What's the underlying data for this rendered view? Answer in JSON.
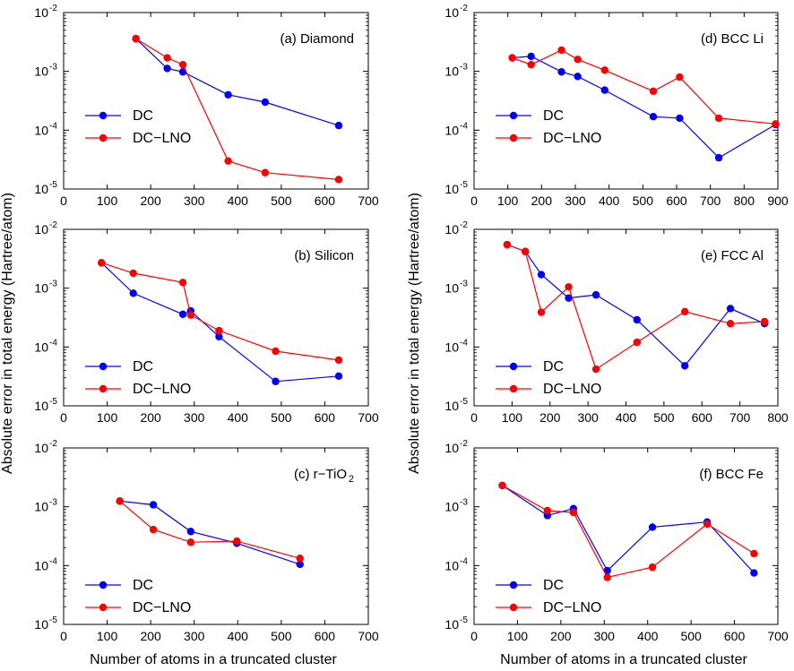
{
  "figure": {
    "ylabel": "Absolute error in total energy (Hartree/atom)",
    "xlabel": "Number of atoms in a truncated cluster"
  },
  "colors": {
    "DC": "#0000ff",
    "DC-LNO": "#ff0000"
  },
  "chart_data": [
    {
      "type": "line",
      "title": "(a) Diamond",
      "xlim": [
        0,
        700
      ],
      "xticks": [
        0,
        100,
        200,
        300,
        400,
        500,
        600,
        700
      ],
      "ylim": [
        1e-05,
        0.01
      ],
      "yscale": "log",
      "ytick_labels": [
        {
          "base": "10",
          "exp": "-5"
        },
        {
          "base": "10",
          "exp": "-4"
        },
        {
          "base": "10",
          "exp": "-3"
        },
        {
          "base": "10",
          "exp": "-2"
        }
      ],
      "legend": "center-left",
      "series": [
        {
          "name": "DC",
          "color": "#0000ff",
          "x": [
            166,
            238,
            274,
            378,
            463,
            632
          ],
          "y": [
            0.0036,
            0.00112,
            0.00098,
            0.0004,
            0.0003,
            0.00012
          ]
        },
        {
          "name": "DC−LNO",
          "color": "#ff0000",
          "x": [
            166,
            238,
            274,
            378,
            463,
            632
          ],
          "y": [
            0.0036,
            0.0017,
            0.0013,
            3e-05,
            1.9e-05,
            1.45e-05
          ]
        }
      ]
    },
    {
      "type": "line",
      "title": "(b) Silicon",
      "xlim": [
        0,
        700
      ],
      "xticks": [
        0,
        100,
        200,
        300,
        400,
        500,
        600,
        700
      ],
      "ylim": [
        1e-05,
        0.01
      ],
      "yscale": "log",
      "ytick_labels": [
        {
          "base": "10",
          "exp": "-5"
        },
        {
          "base": "10",
          "exp": "-4"
        },
        {
          "base": "10",
          "exp": "-3"
        },
        {
          "base": "10",
          "exp": "-2"
        }
      ],
      "legend": "bottom-left",
      "series": [
        {
          "name": "DC",
          "color": "#0000ff",
          "x": [
            87,
            160,
            274,
            292,
            357,
            487,
            632
          ],
          "y": [
            0.0027,
            0.00082,
            0.00036,
            0.00041,
            0.00015,
            2.6e-05,
            3.2e-05
          ]
        },
        {
          "name": "DC−LNO",
          "color": "#ff0000",
          "x": [
            87,
            160,
            274,
            292,
            357,
            487,
            632
          ],
          "y": [
            0.0027,
            0.0018,
            0.00125,
            0.00035,
            0.00019,
            8.5e-05,
            6e-05
          ]
        }
      ]
    },
    {
      "type": "line",
      "title": "(c) r−TiO",
      "title_sub": "2",
      "xlim": [
        0,
        700
      ],
      "xticks": [
        0,
        100,
        200,
        300,
        400,
        500,
        600,
        700
      ],
      "ylim": [
        1e-05,
        0.01
      ],
      "yscale": "log",
      "ytick_labels": [
        {
          "base": "10",
          "exp": "-5"
        },
        {
          "base": "10",
          "exp": "-4"
        },
        {
          "base": "10",
          "exp": "-3"
        },
        {
          "base": "10",
          "exp": "-2"
        }
      ],
      "legend": "bottom-left",
      "series": [
        {
          "name": "DC",
          "color": "#0000ff",
          "x": [
            129,
            206,
            292,
            398,
            543
          ],
          "y": [
            0.00125,
            0.00108,
            0.00038,
            0.00024,
            0.000105
          ]
        },
        {
          "name": "DC−LNO",
          "color": "#ff0000",
          "x": [
            129,
            206,
            292,
            398,
            543
          ],
          "y": [
            0.00125,
            0.00041,
            0.00025,
            0.00026,
            0.000133
          ]
        }
      ]
    },
    {
      "type": "line",
      "title": "(d) BCC Li",
      "xlim": [
        0,
        900
      ],
      "xticks": [
        0,
        100,
        200,
        300,
        400,
        500,
        600,
        700,
        800,
        900
      ],
      "ylim": [
        1e-05,
        0.01
      ],
      "yscale": "log",
      "ytick_labels": [
        {
          "base": "10",
          "exp": "-5"
        },
        {
          "base": "10",
          "exp": "-4"
        },
        {
          "base": "10",
          "exp": "-3"
        },
        {
          "base": "10",
          "exp": "-2"
        }
      ],
      "legend": "center-left",
      "series": [
        {
          "name": "DC",
          "color": "#0000ff",
          "x": [
            113,
            169,
            259,
            307,
            387,
            531,
            609,
            725,
            893
          ],
          "y": [
            0.0017,
            0.0018,
            0.00098,
            0.00082,
            0.00048,
            0.00017,
            0.00016,
            3.4e-05,
            0.000125
          ]
        },
        {
          "name": "DC−LNO",
          "color": "#ff0000",
          "x": [
            113,
            169,
            259,
            307,
            387,
            531,
            609,
            725,
            893
          ],
          "y": [
            0.0017,
            0.0013,
            0.0023,
            0.0016,
            0.00105,
            0.00046,
            0.0008,
            0.00016,
            0.000128
          ]
        }
      ]
    },
    {
      "type": "line",
      "title": "(e) FCC Al",
      "xlim": [
        0,
        800
      ],
      "xticks": [
        0,
        100,
        200,
        300,
        400,
        500,
        600,
        700,
        800
      ],
      "ylim": [
        1e-05,
        0.01
      ],
      "yscale": "log",
      "ytick_labels": [
        {
          "base": "10",
          "exp": "-5"
        },
        {
          "base": "10",
          "exp": "-4"
        },
        {
          "base": "10",
          "exp": "-3"
        },
        {
          "base": "10",
          "exp": "-2"
        }
      ],
      "legend": "bottom-left",
      "series": [
        {
          "name": "DC",
          "color": "#0000ff",
          "x": [
            87,
            135,
            177,
            249,
            321,
            429,
            555,
            675,
            765
          ],
          "y": [
            0.0055,
            0.0042,
            0.0017,
            0.00068,
            0.00077,
            0.00029,
            4.8e-05,
            0.00045,
            0.00025
          ]
        },
        {
          "name": "DC−LNO",
          "color": "#ff0000",
          "x": [
            87,
            135,
            177,
            249,
            321,
            429,
            555,
            675,
            765
          ],
          "y": [
            0.0055,
            0.0042,
            0.00039,
            0.00105,
            4.2e-05,
            0.00012,
            0.0004,
            0.00025,
            0.00027
          ]
        }
      ]
    },
    {
      "type": "line",
      "title": "(f) BCC Fe",
      "xlim": [
        0,
        700
      ],
      "xticks": [
        0,
        100,
        200,
        300,
        400,
        500,
        600,
        700
      ],
      "ylim": [
        1e-05,
        0.01
      ],
      "yscale": "log",
      "ytick_labels": [
        {
          "base": "10",
          "exp": "-5"
        },
        {
          "base": "10",
          "exp": "-4"
        },
        {
          "base": "10",
          "exp": "-3"
        },
        {
          "base": "10",
          "exp": "-2"
        }
      ],
      "legend": "bottom-left",
      "series": [
        {
          "name": "DC",
          "color": "#0000ff",
          "x": [
            65,
            169,
            229,
            307,
            411,
            537,
            645
          ],
          "y": [
            0.0023,
            0.00071,
            0.00093,
            8.2e-05,
            0.00045,
            0.00055,
            7.5e-05
          ]
        },
        {
          "name": "DC−LNO",
          "color": "#ff0000",
          "x": [
            65,
            169,
            229,
            307,
            411,
            537,
            645
          ],
          "y": [
            0.0023,
            0.00086,
            0.0008,
            6.3e-05,
            9.4e-05,
            0.00051,
            0.00016
          ]
        }
      ]
    }
  ]
}
